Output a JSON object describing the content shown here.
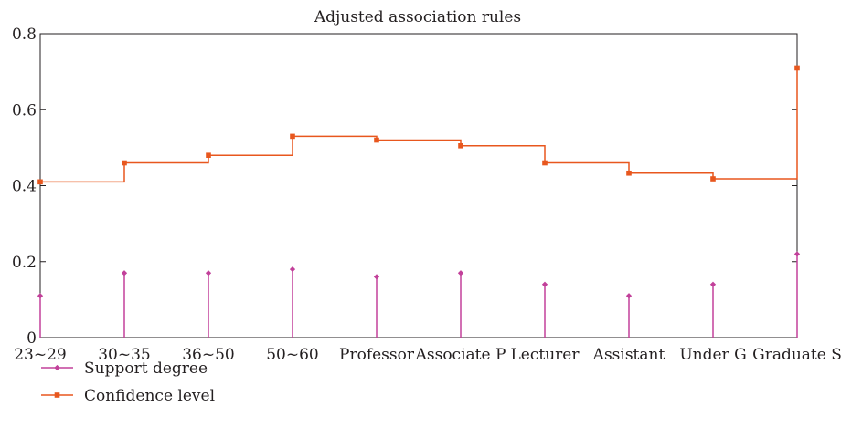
{
  "chart_data": {
    "type": "line",
    "title": "Adjusted association rules",
    "xlabel": "",
    "ylabel": "",
    "categories": [
      "23~29",
      "30~35",
      "36~50",
      "50~60",
      "Professor",
      "Associate P",
      "Lecturer",
      "Assistant",
      "Under G",
      "Graduate S"
    ],
    "ylim": [
      0,
      0.8
    ],
    "yticks": [
      0,
      0.2,
      0.4,
      0.6,
      0.8
    ],
    "ytick_labels": [
      "0",
      "0.2",
      "0.4",
      "0.6",
      "0.8"
    ],
    "grid": false,
    "legend_position": "bottom-left",
    "series": [
      {
        "name": "Support degree",
        "style": "stem",
        "marker": "diamond",
        "color": "#c2409a",
        "values": [
          0.11,
          0.17,
          0.17,
          0.18,
          0.16,
          0.17,
          0.14,
          0.11,
          0.14,
          0.22
        ]
      },
      {
        "name": "Confidence level",
        "style": "step",
        "marker": "square",
        "color": "#e8571e",
        "values": [
          0.41,
          0.46,
          0.48,
          0.53,
          0.52,
          0.505,
          0.46,
          0.433,
          0.418,
          0.71
        ]
      }
    ]
  }
}
